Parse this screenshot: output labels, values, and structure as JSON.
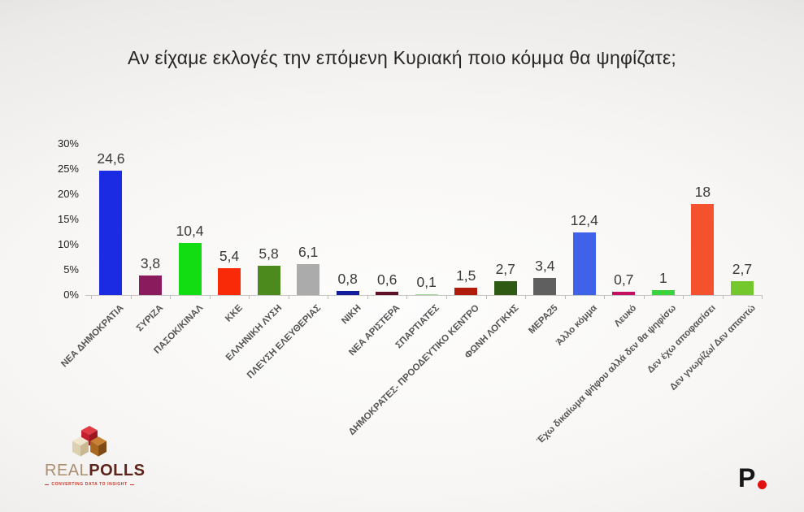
{
  "title": "Αν είχαμε εκλογές την επόμενη Κυριακή ποιο κόμμα θα ψηφίζατε;",
  "chart_data": {
    "type": "bar",
    "title": "Αν είχαμε εκλογές την επόμενη Κυριακή ποιο κόμμα θα ψηφίζατε;",
    "xlabel": "",
    "ylabel": "",
    "ylim": [
      0,
      30
    ],
    "yticks": [
      0,
      5,
      10,
      15,
      20,
      25,
      30
    ],
    "ytick_suffix": "%",
    "grid": false,
    "legend": "none",
    "categories": [
      "ΝΕΑ ΔΗΜΟΚΡΑΤΙΑ",
      "ΣΥΡΙΖΑ",
      "ΠΑΣΟΚ/ΚΙΝΑΛ",
      "ΚΚΕ",
      "ΕΛΛΗΝΙΚΗ ΛΥΣΗ",
      "ΠΛΕΥΣΗ ΕΛΕΥΘΕΡΙΑΣ",
      "ΝΙΚΗ",
      "ΝΕΑ ΑΡΙΣΤΕΡΑ",
      "ΣΠΑΡΤΙΑΤΕΣ",
      "ΔΗΜΟΚΡΑΤΕΣ- ΠΡΟΟΔΕΥΤΙΚΟ ΚΕΝΤΡΟ",
      "ΦΩΝΗ ΛΟΓΙΚΗΣ",
      "ΜΕΡΑ25",
      "Άλλο κόμμα",
      "Λευκό",
      "Έχω δικαίωμα ψήφου αλλά δεν θα ψηφίσω",
      "Δεν έχω αποφασίσει",
      "Δεν γνωρίζω/ Δεν απαντώ"
    ],
    "values": [
      24.6,
      3.8,
      10.4,
      5.4,
      5.8,
      6.1,
      0.8,
      0.6,
      0.1,
      1.5,
      2.7,
      3.4,
      12.4,
      0.7,
      1,
      18,
      2.7
    ],
    "value_labels": [
      "24,6",
      "3,8",
      "10,4",
      "5,4",
      "5,8",
      "6,1",
      "0,8",
      "0,6",
      "0,1",
      "1,5",
      "2,7",
      "3,4",
      "12,4",
      "0,7",
      "1",
      "18",
      "2,7"
    ],
    "bar_colors": [
      "#1b2be4",
      "#8a1b5d",
      "#12dc12",
      "#f92a08",
      "#4d8a1d",
      "#ababab",
      "#141d9e",
      "#601126",
      "#a2d89a",
      "#b01b0c",
      "#2f5a14",
      "#5f5f5f",
      "#3f62e8",
      "#c31062",
      "#3bd33b",
      "#f4512e",
      "#74c82e"
    ]
  },
  "branding": {
    "realpolls": {
      "word_real": "REAL",
      "word_polls": "POLLS",
      "tagline": "CONVERTING DATA TO INSIGHT",
      "cube_red_top": "#e03a45",
      "cube_red_left": "#c41f2e",
      "cube_red_right": "#9c1622",
      "cube_cream_top": "#efe6d0",
      "cube_cream_left": "#ddd0b0",
      "cube_cream_right": "#c9b891",
      "cube_brown_top": "#c98136",
      "cube_brown_left": "#aa671f",
      "cube_brown_right": "#7e4a16"
    },
    "network": {
      "letter": "P",
      "dot_color": "#e01010"
    }
  }
}
